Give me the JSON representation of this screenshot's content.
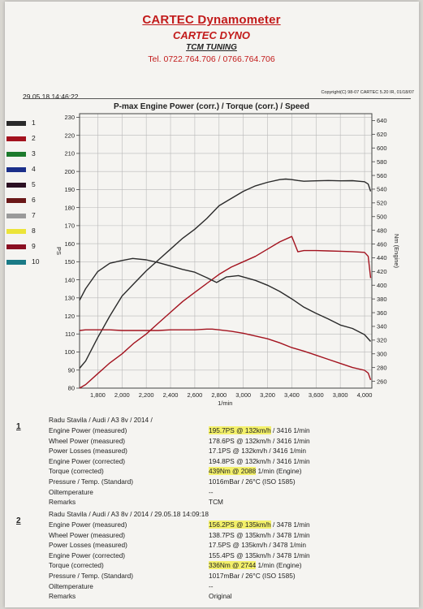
{
  "header": {
    "title": "CARTEC Dynamometer",
    "subtitle": "CARTEC DYNO",
    "company": "TCM TUNING",
    "phone": "Tel. 0722.764.706 / 0766.764.706"
  },
  "print_timestamp": "29.05.18 14:46:22",
  "copyright": "Copyright(C) 98-07 CARTEC 5.20 IR, 01/18/07",
  "chart_data": {
    "type": "line",
    "title": "P-max Engine Power (corr.) / Torque (corr.) / Speed",
    "xlabel": "1/min",
    "ylabel": "PS",
    "y2label": "Nm (Engine)",
    "xlim": [
      1650,
      4060
    ],
    "ylim": [
      80,
      232
    ],
    "y2lim": [
      250,
      650
    ],
    "xticks": [
      "1,800",
      "2,000",
      "2,200",
      "2,400",
      "2,600",
      "2,800",
      "3,000",
      "3,200",
      "3,400",
      "3,600",
      "3,800",
      "4,000"
    ],
    "xtick_values": [
      1800,
      2000,
      2200,
      2400,
      2600,
      2800,
      3000,
      3200,
      3400,
      3600,
      3800,
      4000
    ],
    "yticks": [
      "80",
      "90",
      "100",
      "110",
      "120",
      "130",
      "140",
      "150",
      "160",
      "170",
      "180",
      "190",
      "200",
      "210",
      "220",
      "230"
    ],
    "ytick_values": [
      80,
      90,
      100,
      110,
      120,
      130,
      140,
      150,
      160,
      170,
      180,
      190,
      200,
      210,
      220,
      230
    ],
    "y2ticks": [
      "260",
      "280",
      "300",
      "320",
      "340",
      "360",
      "380",
      "400",
      "420",
      "440",
      "460",
      "480",
      "500",
      "520",
      "540",
      "560",
      "580",
      "600",
      "620",
      "640"
    ],
    "y2tick_values": [
      260,
      280,
      300,
      320,
      340,
      360,
      380,
      400,
      420,
      440,
      460,
      480,
      500,
      520,
      540,
      560,
      580,
      600,
      620,
      640
    ],
    "grid": true,
    "legend": {
      "placement": "left",
      "items": [
        {
          "label": "1",
          "color": "#2a2a2a"
        },
        {
          "label": "2",
          "color": "#a3121e"
        },
        {
          "label": "3",
          "color": "#1c7a2c"
        },
        {
          "label": "4",
          "color": "#1b2f8a"
        },
        {
          "label": "5",
          "color": "#2b0f22"
        },
        {
          "label": "6",
          "color": "#6a1818"
        },
        {
          "label": "7",
          "color": "#9a9a9a"
        },
        {
          "label": "8",
          "color": "#ece438"
        },
        {
          "label": "9",
          "color": "#8a0f22"
        },
        {
          "label": "10",
          "color": "#1a7a86"
        }
      ]
    },
    "series": [
      {
        "axis": "left",
        "color": "#2a2a2a",
        "x": [
          1650,
          1700,
          1800,
          1900,
          2000,
          2100,
          2200,
          2300,
          2400,
          2500,
          2600,
          2700,
          2800,
          2900,
          3000,
          3100,
          3200,
          3300,
          3350,
          3400,
          3450,
          3500,
          3600,
          3700,
          3800,
          3900,
          3950,
          4000,
          4030,
          4050
        ],
        "y": [
          91,
          95,
          108,
          120,
          131,
          138,
          145,
          151,
          157,
          163,
          168,
          174,
          181,
          185,
          189,
          192,
          194,
          195.5,
          195.8,
          195.5,
          195,
          194.6,
          194.8,
          195,
          194.8,
          194.9,
          194.6,
          194.3,
          193,
          189
        ]
      },
      {
        "axis": "left",
        "color": "#a3121e",
        "x": [
          1650,
          1700,
          1800,
          1900,
          2000,
          2100,
          2200,
          2300,
          2400,
          2500,
          2600,
          2700,
          2800,
          2900,
          3000,
          3100,
          3200,
          3300,
          3400,
          3450,
          3500,
          3600,
          3700,
          3800,
          3900,
          4000,
          4030,
          4050
        ],
        "y": [
          80,
          82,
          88,
          94,
          99,
          105,
          110,
          116,
          122,
          128,
          133,
          138,
          143,
          147,
          150,
          153,
          157,
          161,
          164,
          155.5,
          156.2,
          156.2,
          156,
          155.8,
          155.6,
          155.2,
          153,
          141
        ]
      },
      {
        "axis": "right",
        "color": "#2a2a2a",
        "x": [
          1650,
          1700,
          1800,
          1900,
          2000,
          2088,
          2200,
          2300,
          2400,
          2500,
          2600,
          2700,
          2780,
          2860,
          2960,
          3100,
          3200,
          3300,
          3400,
          3500,
          3600,
          3700,
          3800,
          3900,
          4000,
          4050
        ],
        "y": [
          378,
          395,
          420,
          432,
          436,
          439,
          437,
          433,
          428,
          423,
          419,
          411,
          404,
          412,
          414,
          407,
          400,
          391,
          380,
          368,
          359,
          351,
          342,
          337,
          328,
          318
        ]
      },
      {
        "axis": "right",
        "color": "#a3121e",
        "x": [
          1650,
          1700,
          1800,
          1900,
          2000,
          2100,
          2200,
          2300,
          2400,
          2500,
          2600,
          2700,
          2744,
          2800,
          2900,
          3000,
          3100,
          3200,
          3300,
          3400,
          3500,
          3600,
          3700,
          3800,
          3900,
          4000,
          4030,
          4050
        ],
        "y": [
          334,
          335,
          335,
          335,
          334,
          334,
          334,
          334,
          335,
          335,
          335,
          336,
          336,
          335,
          333,
          330,
          326,
          322,
          316,
          309,
          304,
          298,
          292,
          286,
          280,
          276,
          272,
          262
        ]
      }
    ]
  },
  "runs": [
    {
      "number": "1",
      "vehicle": "Radu Stavila  / Audi / A3 8v / 2014 /",
      "rows": [
        {
          "label": "Engine Power (measured)",
          "value": "195.7PS @ 132km/h / 3416 1/min",
          "highlight": "195.7PS @ 132km/h"
        },
        {
          "label": "Wheel Power (measured)",
          "value": "178.6PS @ 132km/h / 3416 1/min",
          "highlight": ""
        },
        {
          "label": "Power Losses (measured)",
          "value": "17.1PS @ 132km/h / 3416 1/min",
          "highlight": ""
        },
        {
          "label": "Engine Power (corrected)",
          "value": "194.8PS @ 132km/h / 3416 1/min",
          "highlight": ""
        },
        {
          "label": "Torque (corrected)",
          "value": "439Nm @ 2088 1/min (Engine)",
          "highlight": "439Nm @ 2088"
        },
        {
          "label": "Pressure / Temp. (Standard)",
          "value": "1016mBar / 26°C  (ISO 1585)",
          "highlight": ""
        },
        {
          "label": "Oiltemperature",
          "value": "--",
          "highlight": ""
        },
        {
          "label": "Remarks",
          "value": "TCM",
          "highlight": ""
        }
      ]
    },
    {
      "number": "2",
      "vehicle": "Radu Stavila / Audi / A3 8v / 2014 / 29.05.18 14:09:18",
      "rows": [
        {
          "label": "Engine Power (measured)",
          "value": "156.2PS @ 135km/h / 3478 1/min",
          "highlight": "156.2PS @ 135km/h"
        },
        {
          "label": "Wheel Power (measured)",
          "value": "138.7PS @ 135km/h / 3478 1/min",
          "highlight": ""
        },
        {
          "label": "Power Losses (measured)",
          "value": "17.5PS @ 135km/h / 3478 1/min",
          "highlight": ""
        },
        {
          "label": "Engine Power (corrected)",
          "value": "155.4PS @ 135km/h / 3478 1/min",
          "highlight": ""
        },
        {
          "label": "Torque (corrected)",
          "value": "336Nm @ 2744 1/min (Engine)",
          "highlight": "336Nm @ 2744"
        },
        {
          "label": "Pressure / Temp. (Standard)",
          "value": "1017mBar / 26°C  (ISO 1585)",
          "highlight": ""
        },
        {
          "label": "Oiltemperature",
          "value": "--",
          "highlight": ""
        },
        {
          "label": "Remarks",
          "value": "Original",
          "highlight": ""
        }
      ]
    }
  ]
}
